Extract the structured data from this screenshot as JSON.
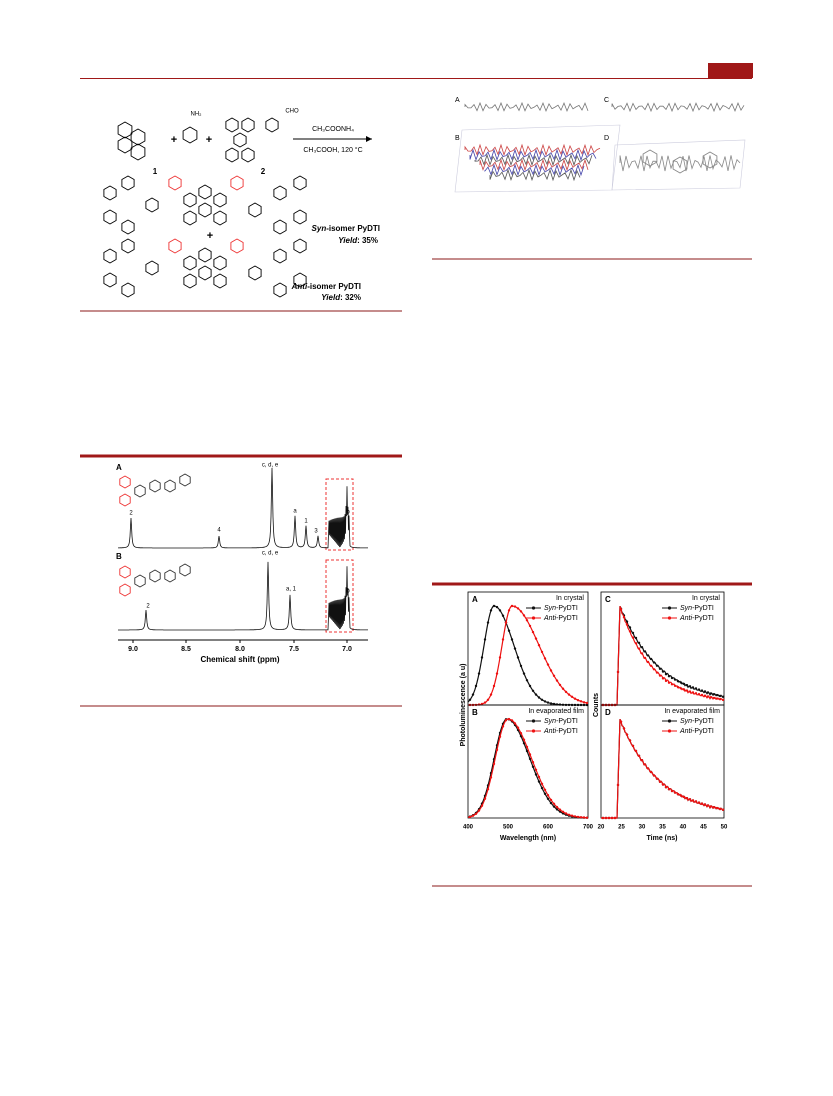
{
  "scheme": {
    "reagent": "CH₃COONH₄",
    "conditions": "CH₃COOH, 120 °C",
    "compound_1": "1",
    "compound_2": "2",
    "amine": "NH₂",
    "aldehyde": "CHO",
    "plus": "+",
    "syn": {
      "prefix": "Syn",
      "suffix": "-isomer PyDTI",
      "yield_word": "Yield",
      "yield_value": ": 35%"
    },
    "anti": {
      "prefix": "Anti",
      "suffix": "-isomer PyDTI",
      "yield_word": "Yield",
      "yield_value": ": 32%"
    }
  },
  "crystal": {
    "panels": [
      "A",
      "B",
      "C",
      "D"
    ]
  },
  "nmr": {
    "panels": [
      "A",
      "B"
    ],
    "peaks_a": [
      "2",
      "4",
      "c, d, e",
      "a",
      "1",
      "3",
      "b"
    ],
    "peaks_b": [
      "2",
      "c, d, e",
      "a, 1",
      "b"
    ],
    "xticks": [
      "9.0",
      "8.5",
      "8.0",
      "7.5",
      "7.0"
    ],
    "xlabel": "Chemical shift (ppm)"
  },
  "pl": {
    "panels": [
      "A",
      "B",
      "C",
      "D"
    ],
    "conditions": [
      "In crystal",
      "In evaporated film",
      "In crystal",
      "In evaporated film"
    ],
    "legend": [
      {
        "prefix": "Syn",
        "suffix": "-PyDTI"
      },
      {
        "prefix": "Anti",
        "suffix": "-PyDTI"
      }
    ],
    "ylabel_left": "Photoluminescence (a u)",
    "ylabel_right": "Counts",
    "xlabel_left": "Wavelength (nm)",
    "xlabel_right": "Time (ns)",
    "xticks_left": [
      "400",
      "500",
      "600",
      "700"
    ],
    "xticks_right": [
      "20",
      "25",
      "30",
      "35",
      "40",
      "45",
      "50"
    ]
  }
}
